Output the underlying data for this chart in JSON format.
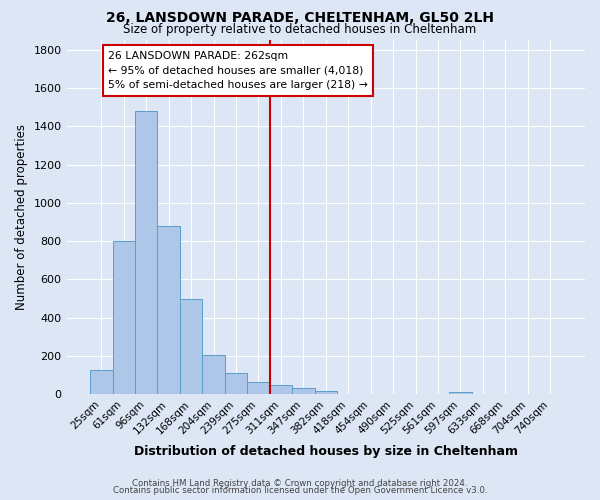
{
  "title": "26, LANSDOWN PARADE, CHELTENHAM, GL50 2LH",
  "subtitle": "Size of property relative to detached houses in Cheltenham",
  "xlabel": "Distribution of detached houses by size in Cheltenham",
  "ylabel": "Number of detached properties",
  "bar_labels": [
    "25sqm",
    "61sqm",
    "96sqm",
    "132sqm",
    "168sqm",
    "204sqm",
    "239sqm",
    "275sqm",
    "311sqm",
    "347sqm",
    "382sqm",
    "418sqm",
    "454sqm",
    "490sqm",
    "525sqm",
    "561sqm",
    "597sqm",
    "633sqm",
    "668sqm",
    "704sqm",
    "740sqm"
  ],
  "bar_values": [
    130,
    800,
    1480,
    880,
    500,
    205,
    110,
    65,
    50,
    35,
    20,
    0,
    0,
    0,
    0,
    0,
    12,
    0,
    0,
    0,
    0
  ],
  "bar_color": "#aec6e8",
  "bar_edge_color": "#5a9ec9",
  "vline_x_index": 7.5,
  "vline_color": "#cc0000",
  "annotation_text": "26 LANSDOWN PARADE: 262sqm\n← 95% of detached houses are smaller (4,018)\n5% of semi-detached houses are larger (218) →",
  "annotation_box_color": "#ffffff",
  "annotation_box_edge": "#cc0000",
  "ylim": [
    0,
    1850
  ],
  "yticks": [
    0,
    200,
    400,
    600,
    800,
    1000,
    1200,
    1400,
    1600,
    1800
  ],
  "background_color": "#dce6f5",
  "grid_color": "#ffffff",
  "footer1": "Contains HM Land Registry data © Crown copyright and database right 2024.",
  "footer2": "Contains public sector information licensed under the Open Government Licence v3.0."
}
